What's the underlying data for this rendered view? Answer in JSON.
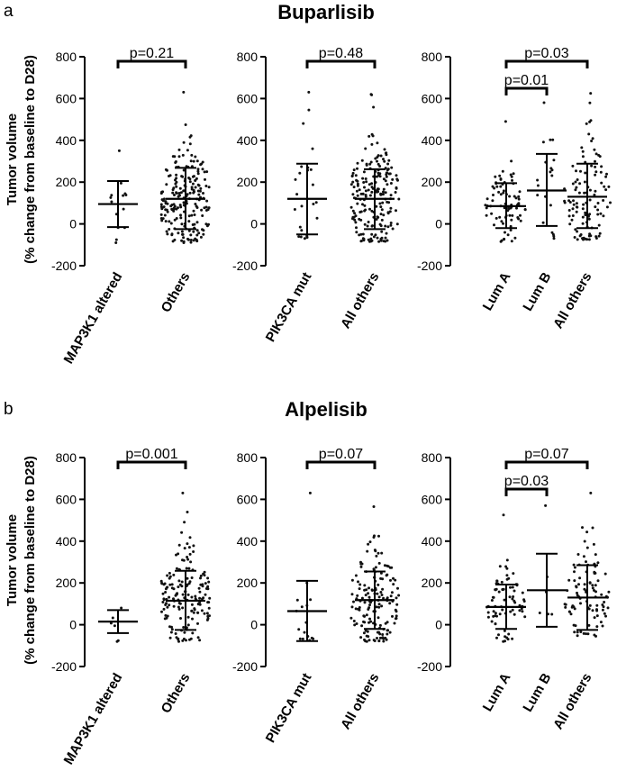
{
  "figure": {
    "panel_a_letter": "a",
    "panel_b_letter": "b",
    "title_a": "Buparlisib",
    "title_b": "Alpelisib",
    "ylabel_line1": "Tumor volume",
    "ylabel_line2": "(% change from baseline to D28)"
  },
  "chart_data": [
    {
      "type": "scatter",
      "panel": "a",
      "drug": "Buparlisib",
      "ylim": [
        -200,
        800
      ],
      "yticks": [
        -200,
        0,
        200,
        400,
        600,
        800
      ],
      "ylabel": "Tumor volume (% change from baseline to D28)",
      "categories": [
        "MAP3K1 altered",
        "Others"
      ],
      "groups": [
        {
          "name": "MAP3K1 altered",
          "mean": 95,
          "sd_low": -15,
          "sd_high": 205,
          "min": -90,
          "max": 350,
          "n": 14
        },
        {
          "name": "Others",
          "mean": 120,
          "sd_low": -25,
          "sd_high": 268,
          "min": -90,
          "max": 630,
          "n": 210
        }
      ],
      "comparisons": [
        {
          "from": "MAP3K1 altered",
          "to": "Others",
          "label": "p=0.21"
        }
      ]
    },
    {
      "type": "scatter",
      "panel": "a",
      "drug": "Buparlisib",
      "ylim": [
        -200,
        800
      ],
      "yticks": [
        -200,
        0,
        200,
        400,
        600,
        800
      ],
      "categories": [
        "PIK3CA mut",
        "All others"
      ],
      "groups": [
        {
          "name": "PIK3CA mut",
          "mean": 120,
          "sd_low": -50,
          "sd_high": 288,
          "min": -70,
          "max": 630,
          "n": 24
        },
        {
          "name": "All others",
          "mean": 120,
          "sd_low": -25,
          "sd_high": 262,
          "min": -85,
          "max": 620,
          "n": 200
        }
      ],
      "comparisons": [
        {
          "from": "PIK3CA mut",
          "to": "All others",
          "label": "p=0.48"
        }
      ]
    },
    {
      "type": "scatter",
      "panel": "a",
      "drug": "Buparlisib",
      "ylim": [
        -200,
        800
      ],
      "yticks": [
        -200,
        0,
        200,
        400,
        600,
        800
      ],
      "categories": [
        "Lum A",
        "Lum B",
        "All others"
      ],
      "groups": [
        {
          "name": "Lum A",
          "mean": 85,
          "sd_low": -20,
          "sd_high": 195,
          "min": -85,
          "max": 490,
          "n": 80
        },
        {
          "name": "Lum B",
          "mean": 160,
          "sd_low": -10,
          "sd_high": 335,
          "min": -70,
          "max": 580,
          "n": 20
        },
        {
          "name": "All others",
          "mean": 130,
          "sd_low": -20,
          "sd_high": 288,
          "min": -75,
          "max": 625,
          "n": 110
        }
      ],
      "comparisons": [
        {
          "from": "Lum A",
          "to": "Lum B",
          "label": "p=0.01"
        },
        {
          "from": "Lum A",
          "to": "All others",
          "label": "p=0.03"
        }
      ]
    },
    {
      "type": "scatter",
      "panel": "b",
      "drug": "Alpelisib",
      "ylim": [
        -200,
        800
      ],
      "yticks": [
        -200,
        0,
        200,
        400,
        600,
        800
      ],
      "ylabel": "Tumor volume (% change from baseline to D28)",
      "categories": [
        "MAP3K1 altered",
        "Others"
      ],
      "groups": [
        {
          "name": "MAP3K1 altered",
          "mean": 15,
          "sd_low": -40,
          "sd_high": 70,
          "min": -80,
          "max": 80,
          "n": 6
        },
        {
          "name": "Others",
          "mean": 115,
          "sd_low": -25,
          "sd_high": 258,
          "min": -80,
          "max": 630,
          "n": 170
        }
      ],
      "comparisons": [
        {
          "from": "MAP3K1 altered",
          "to": "Others",
          "label": "p=0.001"
        }
      ]
    },
    {
      "type": "scatter",
      "panel": "b",
      "drug": "Alpelisib",
      "ylim": [
        -200,
        800
      ],
      "yticks": [
        -200,
        0,
        200,
        400,
        600,
        800
      ],
      "categories": [
        "PIK3CA mut",
        "All others"
      ],
      "groups": [
        {
          "name": "PIK3CA mut",
          "mean": 65,
          "sd_low": -78,
          "sd_high": 210,
          "min": -75,
          "max": 630,
          "n": 16
        },
        {
          "name": "All others",
          "mean": 118,
          "sd_low": -20,
          "sd_high": 255,
          "min": -80,
          "max": 565,
          "n": 160
        }
      ],
      "comparisons": [
        {
          "from": "PIK3CA mut",
          "to": "All others",
          "label": "p=0.07"
        }
      ]
    },
    {
      "type": "scatter",
      "panel": "b",
      "drug": "Alpelisib",
      "ylim": [
        -200,
        800
      ],
      "yticks": [
        -200,
        0,
        200,
        400,
        600,
        800
      ],
      "categories": [
        "Lum A",
        "Lum B",
        "All others"
      ],
      "groups": [
        {
          "name": "Lum A",
          "mean": 85,
          "sd_low": -20,
          "sd_high": 192,
          "min": -80,
          "max": 525,
          "n": 75
        },
        {
          "name": "Lum B",
          "mean": 165,
          "sd_low": -10,
          "sd_high": 340,
          "min": 50,
          "max": 570,
          "n": 6
        },
        {
          "name": "All others",
          "mean": 130,
          "sd_low": -25,
          "sd_high": 285,
          "min": -55,
          "max": 630,
          "n": 95
        }
      ],
      "comparisons": [
        {
          "from": "Lum A",
          "to": "Lum B",
          "label": "p=0.03"
        },
        {
          "from": "Lum A",
          "to": "All others",
          "label": "p=0.07"
        }
      ]
    }
  ]
}
